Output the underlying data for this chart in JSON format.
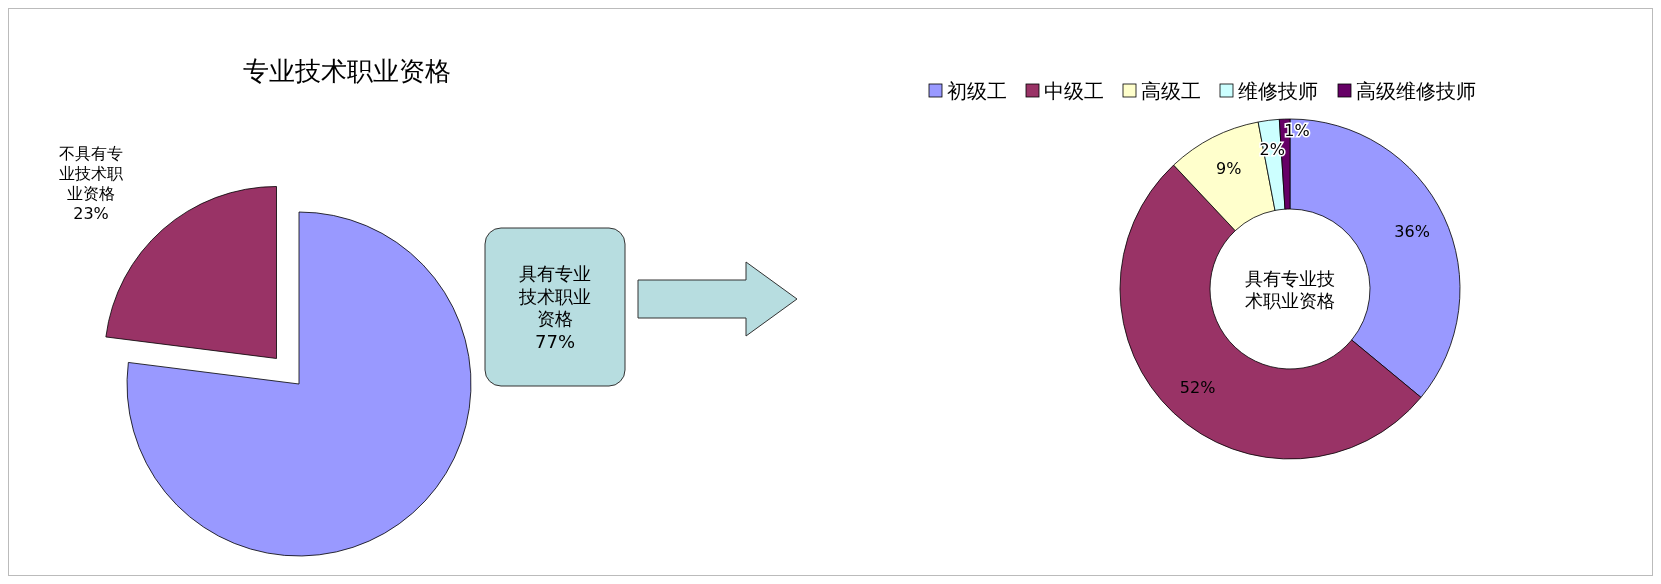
{
  "chart_data": [
    {
      "type": "pie",
      "title": "专业技术职业资格",
      "categories": [
        "不具有专业技术职业资格",
        "具有专业技术职业资格"
      ],
      "values": [
        23,
        77
      ],
      "colors": [
        "#993366",
        "#9999ff"
      ],
      "value_labels": [
        "23%",
        "77%"
      ]
    },
    {
      "type": "donut",
      "categories": [
        "初级工",
        "中级工",
        "高级工",
        "维修技师",
        "高级维修技师"
      ],
      "values": [
        36,
        52,
        9,
        2,
        1
      ],
      "colors": [
        "#9999ff",
        "#993366",
        "#ffffcc",
        "#ccffff",
        "#660066"
      ],
      "value_labels": [
        "36%",
        "52%",
        "9%",
        "2%",
        "1%"
      ],
      "legend": "top",
      "annotations": [
        "具有专业技术职业资格"
      ]
    }
  ]
}
